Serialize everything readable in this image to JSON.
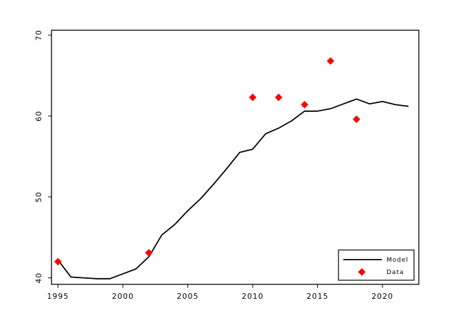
{
  "chart_data": {
    "type": "line",
    "title": "",
    "xlabel": "",
    "ylabel": "",
    "xlim": [
      1994.5,
      2022.8
    ],
    "ylim": [
      39.2,
      70.6
    ],
    "xticks": [
      1995,
      2000,
      2005,
      2010,
      2015,
      2020
    ],
    "yticks": [
      40,
      50,
      60,
      70
    ],
    "grid": false,
    "legend_position": "bottom-right",
    "series": [
      {
        "name": "Model",
        "kind": "line",
        "color": "#000000",
        "points": [
          [
            1995,
            42.2
          ],
          [
            1996,
            40.1
          ],
          [
            1997,
            40.0
          ],
          [
            1998,
            39.9
          ],
          [
            1999,
            39.9
          ],
          [
            2000,
            40.5
          ],
          [
            2001,
            41.1
          ],
          [
            2002,
            42.6
          ],
          [
            2003,
            45.3
          ],
          [
            2004,
            46.6
          ],
          [
            2005,
            48.3
          ],
          [
            2006,
            49.8
          ],
          [
            2007,
            51.6
          ],
          [
            2008,
            53.5
          ],
          [
            2009,
            55.5
          ],
          [
            2010,
            55.9
          ],
          [
            2011,
            57.8
          ],
          [
            2012,
            58.5
          ],
          [
            2013,
            59.4
          ],
          [
            2014,
            60.6
          ],
          [
            2015,
            60.6
          ],
          [
            2016,
            60.9
          ],
          [
            2017,
            61.5
          ],
          [
            2018,
            62.1
          ],
          [
            2019,
            61.5
          ],
          [
            2020,
            61.8
          ],
          [
            2021,
            61.4
          ],
          [
            2022,
            61.2
          ]
        ]
      },
      {
        "name": "Data",
        "kind": "marker",
        "marker": "diamond",
        "color": "#ff0000",
        "points": [
          [
            1995,
            42.0
          ],
          [
            2002,
            43.1
          ],
          [
            2010,
            62.3
          ],
          [
            2012,
            62.3
          ],
          [
            2014,
            61.4
          ],
          [
            2016,
            66.8
          ],
          [
            2018,
            59.6
          ]
        ]
      }
    ]
  }
}
